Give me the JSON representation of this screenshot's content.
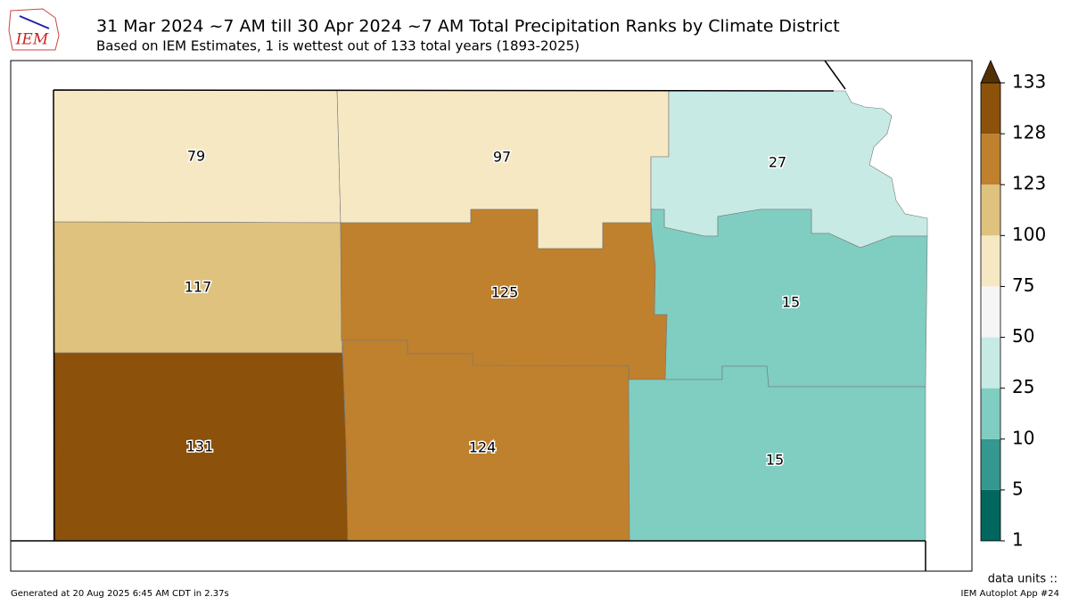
{
  "header": {
    "logo": "IEM",
    "title": "31 Mar 2024 ~7 AM till 30 Apr 2024 ~7 AM Total Precipitation Ranks by Climate District",
    "subtitle": "Based on IEM Estimates, 1 is wettest out of 133 total years (1893-2025)"
  },
  "districts": [
    {
      "rank": 79
    },
    {
      "rank": 97
    },
    {
      "rank": 27
    },
    {
      "rank": 117
    },
    {
      "rank": 125
    },
    {
      "rank": 15
    },
    {
      "rank": 131
    },
    {
      "rank": 124
    },
    {
      "rank": 15
    }
  ],
  "colorbar": {
    "ticks": [
      1,
      5,
      10,
      25,
      50,
      75,
      100,
      123,
      128,
      133
    ],
    "colors": [
      "#01665e",
      "#35978f",
      "#80cdc1",
      "#c7eae5",
      "#f5f5f5",
      "#f6e8c3",
      "#dfc27d",
      "#bf812d",
      "#8c510a"
    ],
    "over_color": "#543005"
  },
  "footer": {
    "units": "data units ::",
    "generated": "Generated at 20 Aug 2025 6:45 AM CDT in 2.37s",
    "app": "IEM Autoplot App #24"
  }
}
